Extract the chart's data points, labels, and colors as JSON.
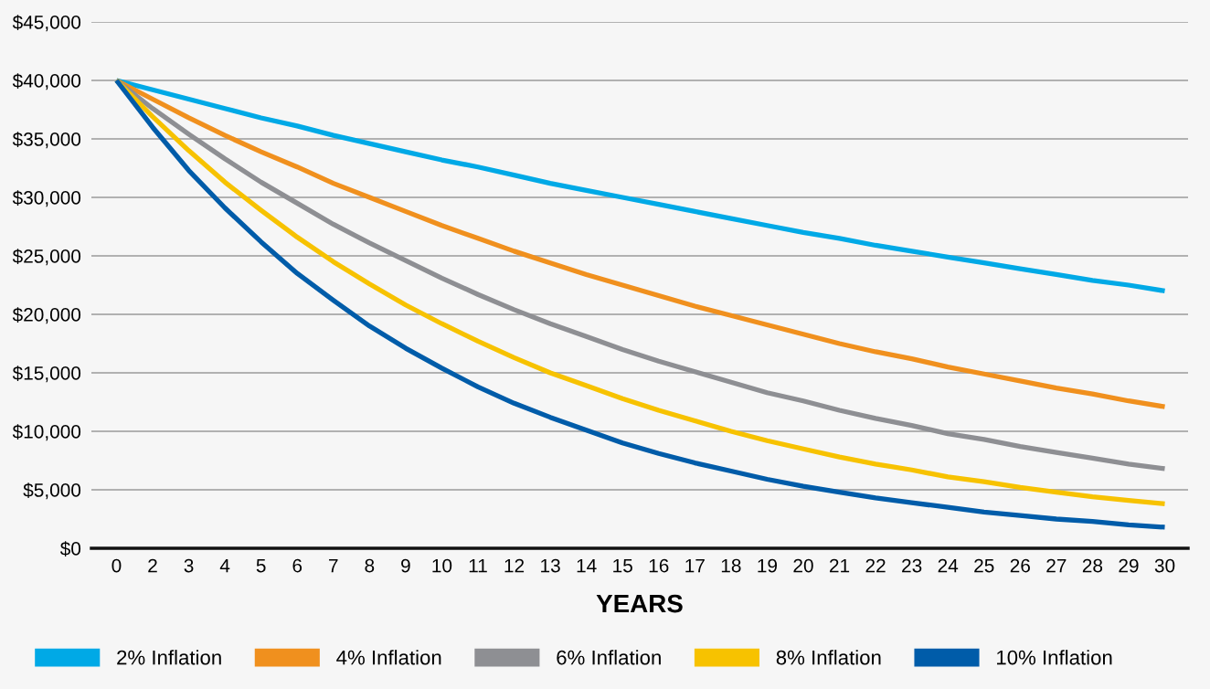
{
  "chart_data": {
    "type": "line",
    "xlabel": "YEARS",
    "categories": [
      "0",
      "2",
      "3",
      "4",
      "5",
      "6",
      "7",
      "8",
      "9",
      "10",
      "11",
      "12",
      "13",
      "14",
      "15",
      "16",
      "17",
      "18",
      "19",
      "20",
      "21",
      "22",
      "23",
      "24",
      "25",
      "26",
      "27",
      "28",
      "29",
      "30"
    ],
    "ylim": [
      0,
      45000
    ],
    "yticks": [
      {
        "value": 0,
        "label": "$0"
      },
      {
        "value": 5000,
        "label": "$5,000"
      },
      {
        "value": 10000,
        "label": "$10,000"
      },
      {
        "value": 15000,
        "label": "$15,000"
      },
      {
        "value": 20000,
        "label": "$20,000"
      },
      {
        "value": 25000,
        "label": "$25,000"
      },
      {
        "value": 30000,
        "label": "$30,000"
      },
      {
        "value": 35000,
        "label": "$35,000"
      },
      {
        "value": 40000,
        "label": "$40,000"
      },
      {
        "value": 45000,
        "label": "$45,000"
      }
    ],
    "grid": "y",
    "legend": "bottom",
    "marker": "none",
    "line_style": "solid",
    "series": [
      {
        "name": "2% Inflation",
        "color": "#00a9e6",
        "values": [
          40000,
          39200,
          38400,
          37600,
          36800,
          36100,
          35300,
          34600,
          33900,
          33200,
          32600,
          31900,
          31200,
          30600,
          30000,
          29400,
          28800,
          28200,
          27600,
          27000,
          26500,
          25900,
          25400,
          24900,
          24400,
          23900,
          23400,
          22900,
          22500,
          22000
        ]
      },
      {
        "name": "4% Inflation",
        "color": "#f0901e",
        "values": [
          40000,
          38400,
          36800,
          35300,
          33900,
          32600,
          31200,
          30000,
          28800,
          27600,
          26500,
          25400,
          24400,
          23400,
          22500,
          21600,
          20700,
          19900,
          19100,
          18300,
          17500,
          16800,
          16200,
          15500,
          14900,
          14300,
          13700,
          13200,
          12600,
          12100
        ]
      },
      {
        "name": "6% Inflation",
        "color": "#8e8f93",
        "values": [
          40000,
          37600,
          35400,
          33300,
          31300,
          29500,
          27700,
          26100,
          24600,
          23100,
          21700,
          20400,
          19200,
          18100,
          17000,
          16000,
          15100,
          14200,
          13300,
          12600,
          11800,
          11100,
          10500,
          9800,
          9300,
          8700,
          8200,
          7700,
          7200,
          6800
        ]
      },
      {
        "name": "8% Inflation",
        "color": "#f7c200",
        "values": [
          40000,
          36900,
          34000,
          31300,
          28900,
          26600,
          24500,
          22600,
          20800,
          19200,
          17700,
          16300,
          15000,
          13900,
          12800,
          11800,
          10900,
          10000,
          9200,
          8500,
          7800,
          7200,
          6700,
          6100,
          5700,
          5200,
          4800,
          4400,
          4100,
          3800
        ]
      },
      {
        "name": "10% Inflation",
        "color": "#005ca9",
        "values": [
          40000,
          36000,
          32300,
          29100,
          26200,
          23500,
          21200,
          19000,
          17100,
          15400,
          13800,
          12400,
          11200,
          10100,
          9000,
          8100,
          7300,
          6600,
          5900,
          5300,
          4800,
          4300,
          3900,
          3500,
          3100,
          2800,
          2500,
          2300,
          2000,
          1800
        ]
      }
    ]
  }
}
